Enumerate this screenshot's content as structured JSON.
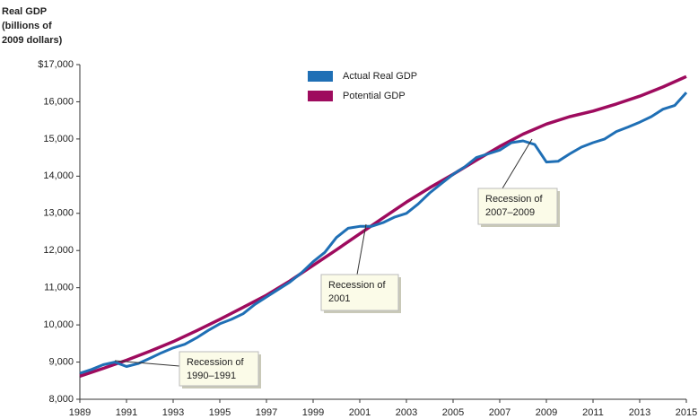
{
  "chart_data": {
    "type": "line",
    "ylabel": [
      "Real GDP",
      "(billions of",
      "2009 dollars)"
    ],
    "xlim": [
      1989,
      2015
    ],
    "xticks": [
      1989,
      1991,
      1993,
      1995,
      1997,
      1999,
      2001,
      2003,
      2005,
      2007,
      2009,
      2011,
      2013,
      2015
    ],
    "ylim": [
      8000,
      17000
    ],
    "yticks": [
      {
        "value": 8000,
        "label": "8,000"
      },
      {
        "value": 9000,
        "label": "9,000"
      },
      {
        "value": 10000,
        "label": "10,000"
      },
      {
        "value": 11000,
        "label": "11,000"
      },
      {
        "value": 12000,
        "label": "12,000"
      },
      {
        "value": 13000,
        "label": "13,000"
      },
      {
        "value": 14000,
        "label": "14,000"
      },
      {
        "value": 15000,
        "label": "15,000"
      },
      {
        "value": 16000,
        "label": "16,000"
      },
      {
        "value": 17000,
        "label": "$17,000"
      }
    ],
    "series": [
      {
        "name": "Actual Real GDP",
        "color": "#1f6fb5",
        "x": [
          1989,
          1989.5,
          1990,
          1990.5,
          1991,
          1991.5,
          1992,
          1992.5,
          1993,
          1993.5,
          1994,
          1994.5,
          1995,
          1995.5,
          1996,
          1996.5,
          1997,
          1997.5,
          1998,
          1998.5,
          1999,
          1999.5,
          2000,
          2000.5,
          2001,
          2001.5,
          2002,
          2002.5,
          2003,
          2003.5,
          2004,
          2004.5,
          2005,
          2005.5,
          2006,
          2006.5,
          2007,
          2007.5,
          2008,
          2008.5,
          2009,
          2009.5,
          2010,
          2010.5,
          2011,
          2011.5,
          2012,
          2012.5,
          2013,
          2013.5,
          2014,
          2014.5,
          2015
        ],
        "values": [
          8700,
          8800,
          8930,
          9000,
          8880,
          8960,
          9100,
          9250,
          9380,
          9480,
          9650,
          9850,
          10030,
          10150,
          10300,
          10550,
          10750,
          10950,
          11150,
          11400,
          11700,
          11950,
          12350,
          12600,
          12650,
          12650,
          12750,
          12900,
          13000,
          13250,
          13550,
          13800,
          14050,
          14250,
          14500,
          14600,
          14700,
          14900,
          14950,
          14850,
          14380,
          14400,
          14600,
          14780,
          14900,
          15000,
          15200,
          15320,
          15450,
          15600,
          15800,
          15900,
          16250
        ]
      },
      {
        "name": "Potential GDP",
        "color": "#9e0b5e",
        "x": [
          1989,
          1990,
          1991,
          1992,
          1993,
          1994,
          1995,
          1996,
          1997,
          1998,
          1999,
          2000,
          2001,
          2002,
          2003,
          2004,
          2005,
          2006,
          2007,
          2008,
          2009,
          2010,
          2011,
          2012,
          2013,
          2014,
          2015
        ],
        "values": [
          8620,
          8830,
          9050,
          9290,
          9550,
          9840,
          10150,
          10470,
          10800,
          11180,
          11600,
          12020,
          12450,
          12880,
          13300,
          13690,
          14050,
          14430,
          14800,
          15130,
          15400,
          15600,
          15750,
          15940,
          16150,
          16400,
          16680
        ]
      }
    ],
    "annotations": [
      [
        "Recession of",
        "1990–1991"
      ],
      [
        "Recession of",
        "2001"
      ],
      [
        "Recession of",
        "2007–2009"
      ]
    ]
  }
}
